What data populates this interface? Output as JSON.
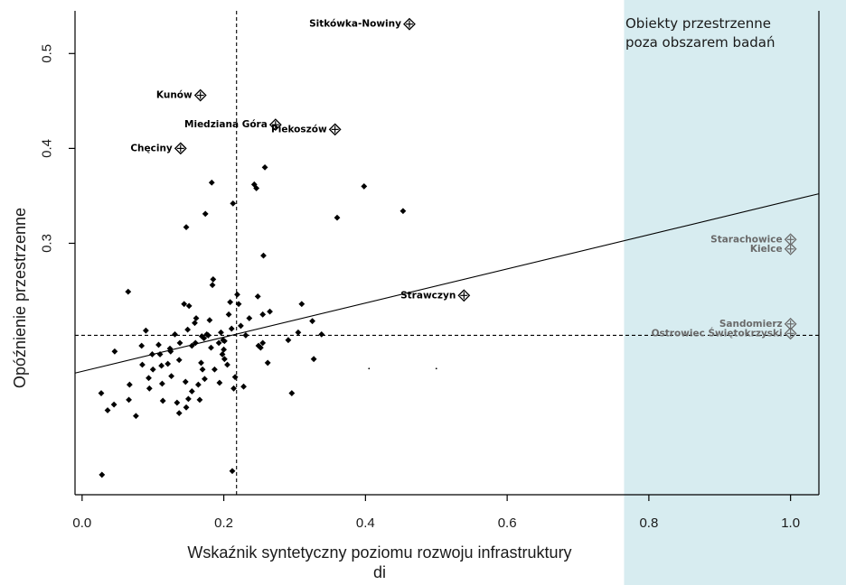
{
  "note": {
    "line1": "Obiekty przestrzenne",
    "line2": "poza obszarem badań",
    "region_color": "#d7ecf0"
  },
  "chart_data": {
    "type": "scatter",
    "title": "",
    "xlabel_line1": "Wskaźnik syntetyczny poziomu rozwoju infrastruktury",
    "xlabel_line2": "di",
    "ylabel": "Opóźnienie przestrzenne",
    "xlim": [
      -0.01,
      1.04
    ],
    "ylim": [
      0.035,
      0.545
    ],
    "x_ticks": [
      0.0,
      0.2,
      0.4,
      0.6,
      0.8,
      1.0
    ],
    "x_tick_labels": [
      "0.0",
      "0.2",
      "0.4",
      "0.6",
      "0.8",
      "1.0"
    ],
    "y_ticks": [
      0.3,
      0.4,
      0.5
    ],
    "y_tick_labels": [
      "0.3",
      "0.4",
      "0.5"
    ],
    "grid": false,
    "mean_x": 0.218,
    "mean_y": 0.203,
    "regression": {
      "intercept": 0.165,
      "slope": 0.18
    },
    "outside_region_x_from": 0.765,
    "labeled_points": [
      {
        "name": "Sitkówka-Nowiny",
        "x": 0.462,
        "y": 0.531,
        "side": "left"
      },
      {
        "name": "Kunów",
        "x": 0.167,
        "y": 0.456,
        "side": "left"
      },
      {
        "name": "Miedziana Góra",
        "x": 0.273,
        "y": 0.425,
        "side": "left"
      },
      {
        "name": "Piekoszów",
        "x": 0.357,
        "y": 0.42,
        "side": "left"
      },
      {
        "name": "Chęciny",
        "x": 0.139,
        "y": 0.4,
        "side": "left"
      },
      {
        "name": "Strawczyn",
        "x": 0.539,
        "y": 0.245,
        "side": "left"
      },
      {
        "name": "Starachowice",
        "x": 1.0,
        "y": 0.304,
        "side": "left",
        "gray": true
      },
      {
        "name": "Kielce",
        "x": 1.0,
        "y": 0.294,
        "side": "left",
        "gray": true
      },
      {
        "name": "Sandomierz",
        "x": 1.0,
        "y": 0.215,
        "side": "left",
        "gray": true
      },
      {
        "name": "Ostrowiec Świętokrzyski",
        "x": 1.0,
        "y": 0.205,
        "side": "left",
        "gray": true
      }
    ],
    "points": [
      [
        0.027,
        0.142
      ],
      [
        0.036,
        0.124
      ],
      [
        0.045,
        0.13
      ],
      [
        0.028,
        0.056
      ],
      [
        0.046,
        0.186
      ],
      [
        0.065,
        0.249
      ],
      [
        0.067,
        0.151
      ],
      [
        0.066,
        0.135
      ],
      [
        0.076,
        0.118
      ],
      [
        0.085,
        0.172
      ],
      [
        0.084,
        0.192
      ],
      [
        0.09,
        0.208
      ],
      [
        0.094,
        0.158
      ],
      [
        0.095,
        0.147
      ],
      [
        0.099,
        0.183
      ],
      [
        0.1,
        0.167
      ],
      [
        0.108,
        0.193
      ],
      [
        0.11,
        0.183
      ],
      [
        0.112,
        0.171
      ],
      [
        0.113,
        0.152
      ],
      [
        0.114,
        0.134
      ],
      [
        0.121,
        0.173
      ],
      [
        0.124,
        0.189
      ],
      [
        0.125,
        0.186
      ],
      [
        0.126,
        0.16
      ],
      [
        0.131,
        0.204
      ],
      [
        0.134,
        0.132
      ],
      [
        0.137,
        0.177
      ],
      [
        0.137,
        0.121
      ],
      [
        0.138,
        0.195
      ],
      [
        0.144,
        0.236
      ],
      [
        0.146,
        0.154
      ],
      [
        0.147,
        0.317
      ],
      [
        0.147,
        0.127
      ],
      [
        0.149,
        0.209
      ],
      [
        0.15,
        0.136
      ],
      [
        0.151,
        0.234
      ],
      [
        0.155,
        0.192
      ],
      [
        0.155,
        0.144
      ],
      [
        0.159,
        0.216
      ],
      [
        0.16,
        0.195
      ],
      [
        0.161,
        0.221
      ],
      [
        0.164,
        0.151
      ],
      [
        0.166,
        0.135
      ],
      [
        0.168,
        0.174
      ],
      [
        0.169,
        0.202
      ],
      [
        0.17,
        0.167
      ],
      [
        0.172,
        0.2
      ],
      [
        0.173,
        0.157
      ],
      [
        0.174,
        0.331
      ],
      [
        0.176,
        0.204
      ],
      [
        0.178,
        0.203
      ],
      [
        0.18,
        0.219
      ],
      [
        0.182,
        0.19
      ],
      [
        0.183,
        0.364
      ],
      [
        0.184,
        0.256
      ],
      [
        0.185,
        0.262
      ],
      [
        0.187,
        0.167
      ],
      [
        0.193,
        0.195
      ],
      [
        0.194,
        0.153
      ],
      [
        0.196,
        0.206
      ],
      [
        0.198,
        0.183
      ],
      [
        0.199,
        0.198
      ],
      [
        0.2,
        0.188
      ],
      [
        0.201,
        0.178
      ],
      [
        0.201,
        0.197
      ],
      [
        0.205,
        0.172
      ],
      [
        0.207,
        0.225
      ],
      [
        0.209,
        0.238
      ],
      [
        0.211,
        0.21
      ],
      [
        0.212,
        0.06
      ],
      [
        0.213,
        0.342
      ],
      [
        0.214,
        0.147
      ],
      [
        0.216,
        0.159
      ],
      [
        0.219,
        0.246
      ],
      [
        0.221,
        0.236
      ],
      [
        0.224,
        0.213
      ],
      [
        0.228,
        0.149
      ],
      [
        0.231,
        0.203
      ],
      [
        0.236,
        0.221
      ],
      [
        0.243,
        0.362
      ],
      [
        0.246,
        0.358
      ],
      [
        0.248,
        0.244
      ],
      [
        0.249,
        0.192
      ],
      [
        0.252,
        0.19
      ],
      [
        0.255,
        0.225
      ],
      [
        0.255,
        0.195
      ],
      [
        0.256,
        0.287
      ],
      [
        0.258,
        0.38
      ],
      [
        0.262,
        0.174
      ],
      [
        0.265,
        0.228
      ],
      [
        0.291,
        0.198
      ],
      [
        0.296,
        0.142
      ],
      [
        0.305,
        0.206
      ],
      [
        0.31,
        0.236
      ],
      [
        0.325,
        0.218
      ],
      [
        0.327,
        0.178
      ],
      [
        0.338,
        0.204
      ],
      [
        0.36,
        0.327
      ],
      [
        0.398,
        0.36
      ],
      [
        0.453,
        0.334
      ],
      [
        0.405,
        0.168
      ],
      [
        0.5,
        0.168
      ]
    ]
  }
}
